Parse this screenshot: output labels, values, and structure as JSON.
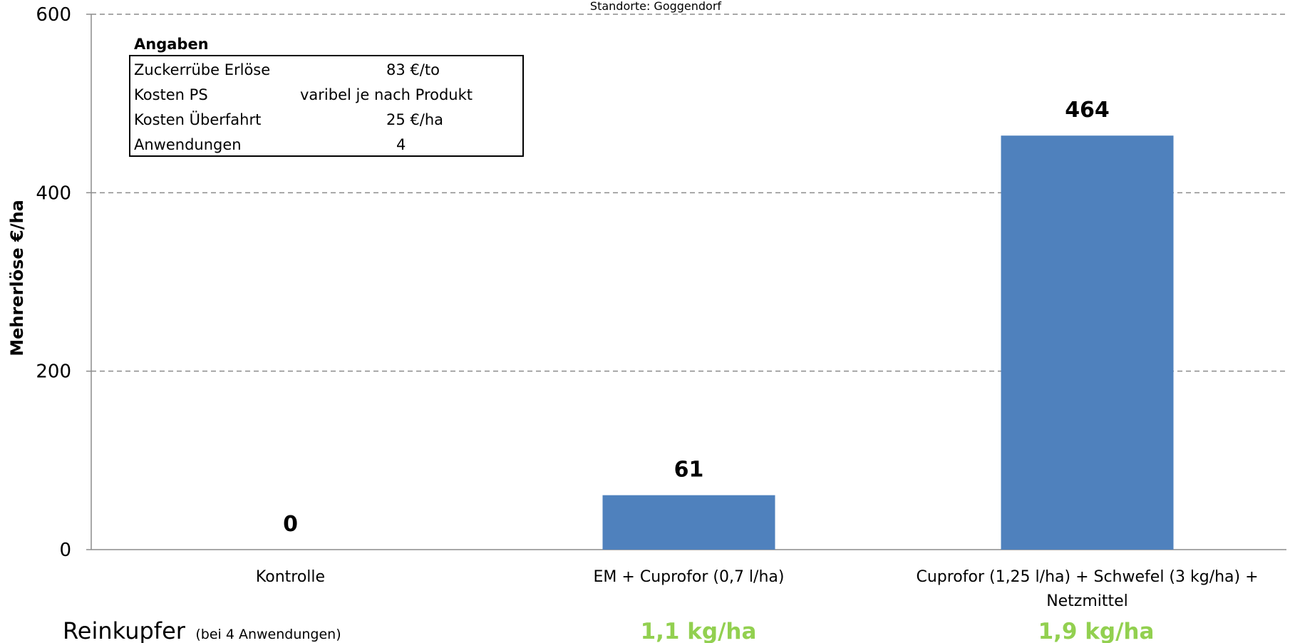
{
  "chart_data": {
    "type": "bar",
    "subtitle": "Standorte: Goggendorf",
    "ylabel": "Mehrerlöse €/ha",
    "xlabel": "",
    "ylim": [
      0,
      600
    ],
    "yticks": [
      "0",
      "200",
      "400",
      "600"
    ],
    "grid": true,
    "bar_color": "#4f81bd",
    "categories": [
      [
        "Kontrolle"
      ],
      [
        "EM + Cuprofor (0,7 l/ha)"
      ],
      [
        "Cuprofor (1,25 l/ha) + Schwefel (3 kg/ha) +",
        "Netzmittel"
      ]
    ],
    "values": [
      0,
      61,
      464
    ],
    "data_labels": [
      "0",
      "61",
      "464"
    ]
  },
  "info_box": {
    "title": "Angaben",
    "rows": [
      {
        "label": "Zuckerrübe Erlöse",
        "value": "83 €/to"
      },
      {
        "label": "Kosten PS",
        "value": "varibel je nach Produkt"
      },
      {
        "label": "Kosten Überfahrt",
        "value": "25 €/ha"
      },
      {
        "label": "Anwendungen",
        "value": "4"
      }
    ]
  },
  "footer": {
    "label": "Reinkupfer",
    "note": "(bei 4 Anwendungen)",
    "values": [
      "",
      "1,1 kg/ha",
      "1,9 kg/ha"
    ],
    "value_color": "#92d050"
  }
}
